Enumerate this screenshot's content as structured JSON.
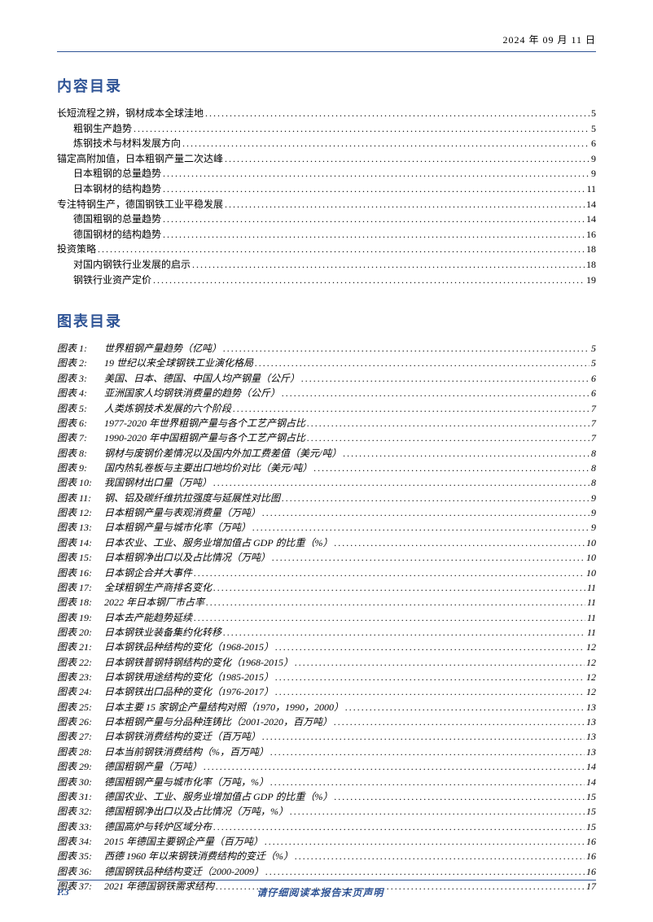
{
  "header": {
    "date": "2024 年 09 月 11 日"
  },
  "sections": {
    "contents_title": "内容目录",
    "figures_title": "图表目录"
  },
  "toc": [
    {
      "label": "长短流程之辨，钢材成本全球洼地",
      "page": "5",
      "indent": 0
    },
    {
      "label": "粗钢生产趋势",
      "page": "5",
      "indent": 1
    },
    {
      "label": "炼钢技术与材料发展方向",
      "page": "6",
      "indent": 1
    },
    {
      "label": "锚定高附加值，日本粗钢产量二次达峰",
      "page": "9",
      "indent": 0
    },
    {
      "label": "日本粗钢的总量趋势",
      "page": "9",
      "indent": 1
    },
    {
      "label": "日本钢材的结构趋势",
      "page": "11",
      "indent": 1
    },
    {
      "label": "专注特钢生产，德国钢铁工业平稳发展",
      "page": "14",
      "indent": 0
    },
    {
      "label": "德国粗钢的总量趋势",
      "page": "14",
      "indent": 1
    },
    {
      "label": "德国钢材的结构趋势",
      "page": "16",
      "indent": 1
    },
    {
      "label": "投资策略",
      "page": "18",
      "indent": 0
    },
    {
      "label": "对国内钢铁行业发展的启示",
      "page": "18",
      "indent": 1
    },
    {
      "label": "钢铁行业资产定价",
      "page": "19",
      "indent": 1
    }
  ],
  "figures": [
    {
      "prefix": "图表 1:",
      "title": "世界粗钢产量趋势（亿吨）",
      "page": "5"
    },
    {
      "prefix": "图表 2:",
      "title": "19 世纪以来全球钢铁工业演化格局",
      "page": "5"
    },
    {
      "prefix": "图表 3:",
      "title": "美国、日本、德国、中国人均产钢量（公斤）",
      "page": "6"
    },
    {
      "prefix": "图表 4:",
      "title": "亚洲国家人均钢铁消费量的趋势（公斤）",
      "page": "6"
    },
    {
      "prefix": "图表 5:",
      "title": "人类炼钢技术发展的六个阶段",
      "page": "7"
    },
    {
      "prefix": "图表 6:",
      "title": "1977-2020 年世界粗钢产量与各个工艺产钢占比",
      "page": "7"
    },
    {
      "prefix": "图表 7:",
      "title": "1990-2020 年中国粗钢产量与各个工艺产钢占比",
      "page": "7"
    },
    {
      "prefix": "图表 8:",
      "title": "钢材与废钢价差情况以及国内外加工费差值（美元/吨）",
      "page": "8"
    },
    {
      "prefix": "图表 9:",
      "title": "国内热轧卷板与主要出口地均价对比（美元/吨）",
      "page": "8"
    },
    {
      "prefix": "图表 10:",
      "title": "我国钢材出口量（万吨）",
      "page": "8"
    },
    {
      "prefix": "图表 11:",
      "title": "钢、铝及碳纤维抗拉强度与延展性对比图",
      "page": "9"
    },
    {
      "prefix": "图表 12:",
      "title": "日本粗钢产量与表观消费量（万吨）",
      "page": "9"
    },
    {
      "prefix": "图表 13:",
      "title": "日本粗钢产量与城市化率（万吨）",
      "page": "9"
    },
    {
      "prefix": "图表 14:",
      "title": "日本农业、工业、服务业增加值占 GDP 的比重（%）",
      "page": "10"
    },
    {
      "prefix": "图表 15:",
      "title": "日本粗钢净出口以及占比情况（万吨）",
      "page": "10"
    },
    {
      "prefix": "图表 16:",
      "title": "日本钢企合并大事件",
      "page": "10"
    },
    {
      "prefix": "图表 17:",
      "title": "全球粗钢生产商排名变化",
      "page": "11"
    },
    {
      "prefix": "图表 18:",
      "title": "2022 年日本钢厂市占率",
      "page": "11"
    },
    {
      "prefix": "图表 19:",
      "title": "日本去产能趋势延续",
      "page": "11"
    },
    {
      "prefix": "图表 20:",
      "title": "日本钢铁业装备集约化转移",
      "page": "11"
    },
    {
      "prefix": "图表 21:",
      "title": "日本钢铁品种结构的变化（1968-2015）",
      "page": "12"
    },
    {
      "prefix": "图表 22:",
      "title": "日本钢铁普钢特钢结构的变化（1968-2015）",
      "page": "12"
    },
    {
      "prefix": "图表 23:",
      "title": "日本钢铁用途结构的变化（1985-2015）",
      "page": "12"
    },
    {
      "prefix": "图表 24:",
      "title": "日本钢铁出口品种的变化（1976-2017）",
      "page": "12"
    },
    {
      "prefix": "图表 25:",
      "title": "日本主要 15 家钢企产量结构对照（1970，1990，2000）",
      "page": "13"
    },
    {
      "prefix": "图表 26:",
      "title": "日本粗钢产量与分品种连铸比（2001-2020，百万吨）",
      "page": "13"
    },
    {
      "prefix": "图表 27:",
      "title": "日本钢铁消费结构的变迁（百万吨）",
      "page": "13"
    },
    {
      "prefix": "图表 28:",
      "title": "日本当前钢铁消费结构（%，百万吨）",
      "page": "13"
    },
    {
      "prefix": "图表 29:",
      "title": "德国粗钢产量（万吨）",
      "page": "14"
    },
    {
      "prefix": "图表 30:",
      "title": "德国粗钢产量与城市化率（万吨，%）",
      "page": "14"
    },
    {
      "prefix": "图表 31:",
      "title": "德国农业、工业、服务业增加值占 GDP 的比重（%）",
      "page": "15"
    },
    {
      "prefix": "图表 32:",
      "title": "德国粗钢净出口以及占比情况（万吨，%）",
      "page": "15"
    },
    {
      "prefix": "图表 33:",
      "title": "德国高炉与转炉区域分布",
      "page": "15"
    },
    {
      "prefix": "图表 34:",
      "title": "2015 年德国主要钢企产量（百万吨）",
      "page": "16"
    },
    {
      "prefix": "图表 35:",
      "title": "西德 1960 年以来钢铁消费结构的变迁（%）",
      "page": "16"
    },
    {
      "prefix": "图表 36:",
      "title": "德国钢铁品种结构变迁（2000-2009）",
      "page": "16"
    },
    {
      "prefix": "图表 37:",
      "title": "2021 年德国钢铁需求结构",
      "page": "17"
    }
  ],
  "footer": {
    "page_num": "P.3",
    "disclaimer": "请仔细阅读本报告末页声明"
  },
  "colors": {
    "accent": "#2f5496",
    "text": "#000000",
    "background": "#ffffff"
  }
}
